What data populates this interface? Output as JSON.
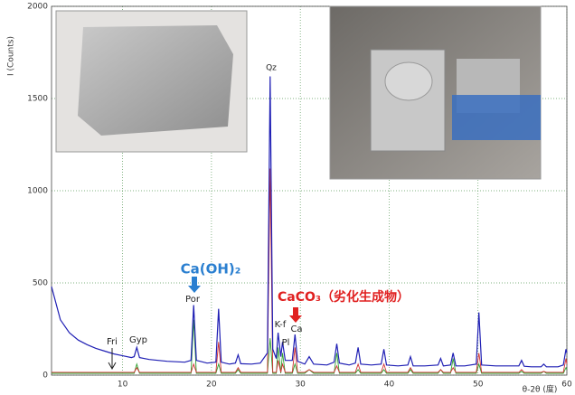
{
  "chart_data": {
    "type": "line",
    "y_label": "I (Counts)",
    "x_label": "θ-2θ (度)",
    "xlim": [
      2,
      60
    ],
    "xticks": [
      10,
      20,
      30,
      40,
      50,
      60
    ],
    "ylim": [
      0,
      2000
    ],
    "yticks": [
      0,
      500,
      1000,
      1500,
      2000
    ],
    "grid": true,
    "annotations": [
      "Qz",
      "Por",
      "Fri",
      "Gyp",
      "K-f",
      "Pl",
      "Ca",
      "Ca(OH)₂",
      "CaCO₃（劣化生成物）"
    ],
    "x": [
      2,
      3,
      4,
      5,
      6,
      7,
      8,
      9,
      10,
      11,
      11.3,
      11.6,
      11.9,
      13,
      15,
      17,
      17.7,
      18,
      18.3,
      19.5,
      20.5,
      20.8,
      21.1,
      22,
      22.7,
      23,
      23.3,
      24.5,
      25.5,
      26.3,
      26.6,
      26.9,
      27.3,
      27.5,
      27.8,
      28,
      28.3,
      29.1,
      29.4,
      29.7,
      30.5,
      31,
      31.5,
      33,
      33.8,
      34.1,
      34.4,
      35.5,
      36.2,
      36.5,
      36.8,
      38,
      39.1,
      39.4,
      39.7,
      41,
      42.1,
      42.4,
      42.7,
      44,
      45.5,
      45.8,
      46.1,
      46.9,
      47.2,
      47.5,
      48.5,
      49.8,
      50.1,
      50.4,
      52,
      54.6,
      54.9,
      55.2,
      56,
      57.1,
      57.4,
      57.7,
      59,
      59.6,
      59.9,
      60
    ],
    "series": [
      {
        "color": "#1f1fb4",
        "values": [
          480,
          300,
          230,
          190,
          165,
          145,
          130,
          115,
          105,
          95,
          100,
          150,
          95,
          85,
          75,
          70,
          80,
          380,
          80,
          65,
          70,
          360,
          70,
          60,
          65,
          110,
          62,
          60,
          65,
          120,
          1620,
          140,
          90,
          230,
          100,
          180,
          80,
          80,
          220,
          75,
          60,
          100,
          60,
          55,
          70,
          170,
          65,
          55,
          65,
          150,
          60,
          55,
          60,
          140,
          55,
          50,
          55,
          100,
          50,
          50,
          55,
          90,
          50,
          55,
          120,
          50,
          50,
          60,
          340,
          55,
          50,
          50,
          80,
          48,
          45,
          45,
          60,
          45,
          45,
          55,
          140,
          120
        ]
      },
      {
        "color": "#d03030",
        "values": [
          15,
          15,
          15,
          15,
          15,
          15,
          15,
          15,
          15,
          15,
          15,
          40,
          15,
          15,
          15,
          15,
          15,
          60,
          15,
          15,
          15,
          180,
          15,
          15,
          15,
          40,
          15,
          15,
          15,
          15,
          1120,
          15,
          15,
          80,
          15,
          60,
          15,
          15,
          150,
          15,
          15,
          30,
          15,
          15,
          15,
          50,
          15,
          15,
          15,
          60,
          15,
          15,
          15,
          60,
          15,
          15,
          15,
          40,
          15,
          15,
          15,
          30,
          15,
          15,
          40,
          15,
          15,
          15,
          120,
          15,
          15,
          15,
          30,
          15,
          15,
          15,
          20,
          15,
          15,
          15,
          90,
          60
        ]
      },
      {
        "color": "#30a030",
        "values": [
          10,
          10,
          10,
          10,
          10,
          10,
          10,
          10,
          10,
          10,
          10,
          60,
          10,
          10,
          10,
          10,
          10,
          300,
          10,
          10,
          10,
          60,
          10,
          10,
          10,
          30,
          10,
          10,
          10,
          10,
          200,
          10,
          10,
          150,
          10,
          120,
          10,
          10,
          60,
          10,
          10,
          30,
          10,
          10,
          10,
          120,
          10,
          10,
          10,
          30,
          10,
          10,
          10,
          30,
          10,
          10,
          10,
          30,
          10,
          10,
          10,
          30,
          10,
          10,
          90,
          10,
          10,
          10,
          60,
          10,
          10,
          10,
          20,
          10,
          10,
          10,
          20,
          10,
          10,
          10,
          40,
          30
        ]
      }
    ]
  }
}
